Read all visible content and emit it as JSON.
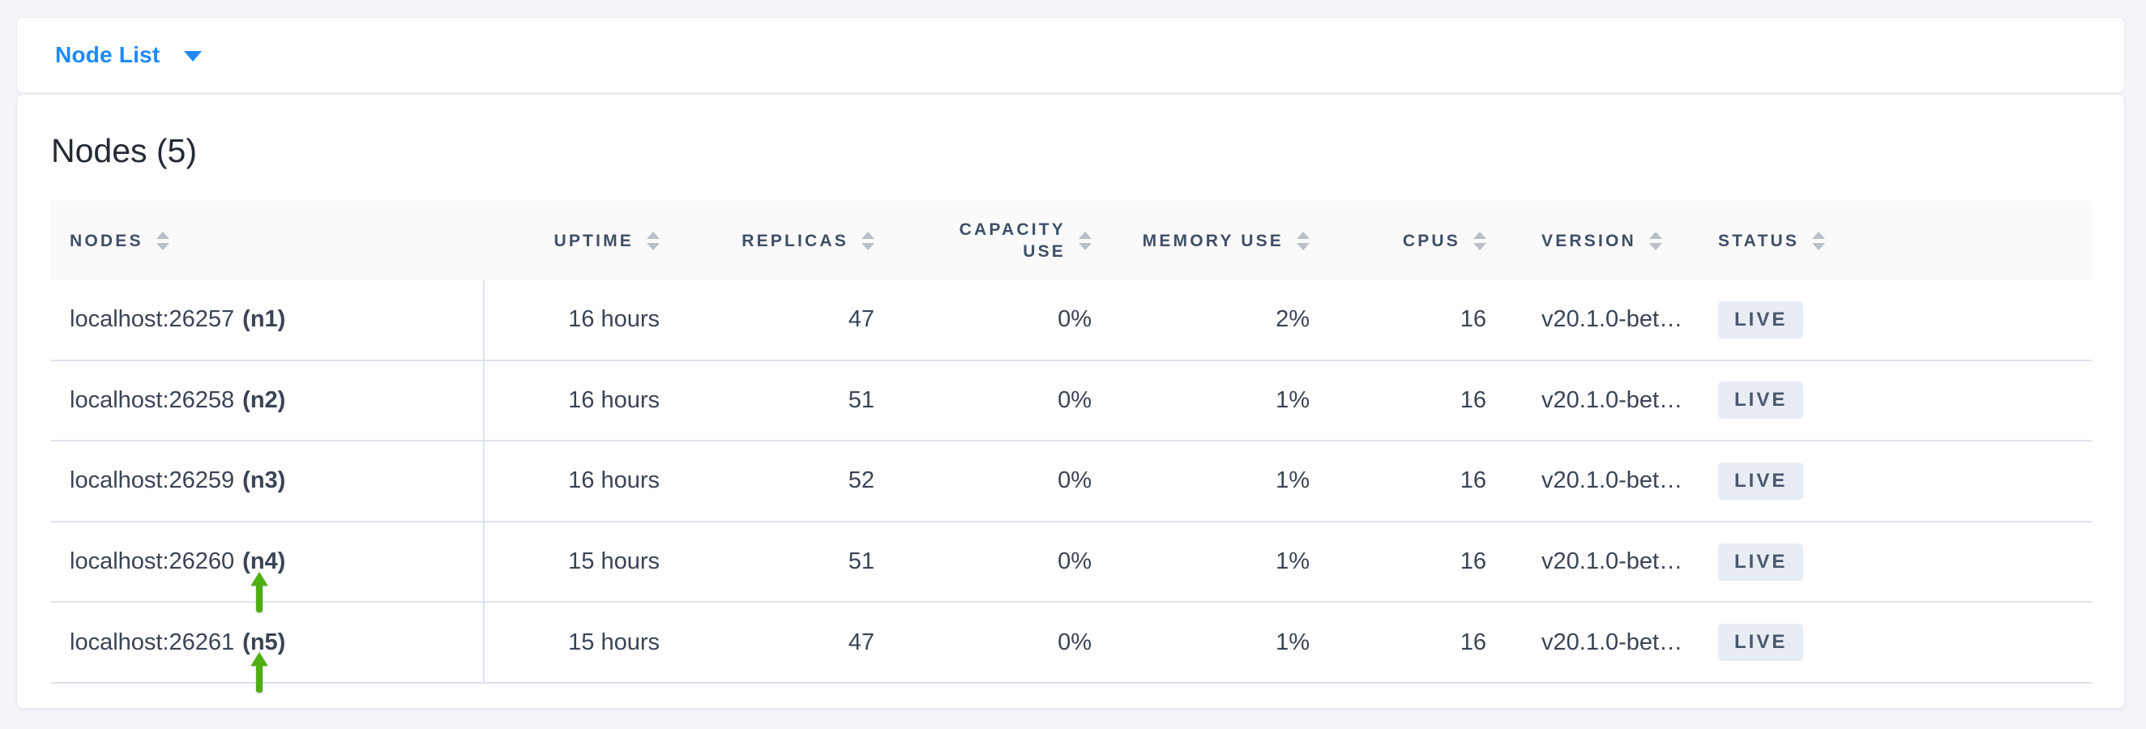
{
  "colors": {
    "accent_blue": "#1d8aff",
    "arrow_green": "#4fae12",
    "header_text": "#3e4f66",
    "body_text": "#394455",
    "badge_bg": "#e8ecf3",
    "page_bg": "#f3f5f9"
  },
  "toolbar": {
    "dropdown_label": "Node List"
  },
  "main": {
    "title": "Nodes (5)",
    "table": {
      "columns": [
        {
          "key": "node",
          "label": "NODES",
          "align": "left"
        },
        {
          "key": "uptime",
          "label": "UPTIME",
          "align": "right"
        },
        {
          "key": "replicas",
          "label": "REPLICAS",
          "align": "right"
        },
        {
          "key": "capacity_use",
          "label": "CAPACITY USE",
          "align": "right"
        },
        {
          "key": "memory_use",
          "label": "MEMORY USE",
          "align": "right"
        },
        {
          "key": "cpus",
          "label": "CPUS",
          "align": "right"
        },
        {
          "key": "version",
          "label": "VERSION",
          "align": "left"
        },
        {
          "key": "status",
          "label": "STATUS",
          "align": "left"
        }
      ],
      "rows": [
        {
          "address": "localhost:26257",
          "id": "(n1)",
          "uptime": "16 hours",
          "replicas": "47",
          "capacity_use": "0%",
          "memory_use": "2%",
          "cpus": "16",
          "version": "v20.1.0-bet…",
          "status": "LIVE",
          "arrow": false
        },
        {
          "address": "localhost:26258",
          "id": "(n2)",
          "uptime": "16 hours",
          "replicas": "51",
          "capacity_use": "0%",
          "memory_use": "1%",
          "cpus": "16",
          "version": "v20.1.0-bet…",
          "status": "LIVE",
          "arrow": false
        },
        {
          "address": "localhost:26259",
          "id": "(n3)",
          "uptime": "16 hours",
          "replicas": "52",
          "capacity_use": "0%",
          "memory_use": "1%",
          "cpus": "16",
          "version": "v20.1.0-bet…",
          "status": "LIVE",
          "arrow": false
        },
        {
          "address": "localhost:26260",
          "id": "(n4)",
          "uptime": "15 hours",
          "replicas": "51",
          "capacity_use": "0%",
          "memory_use": "1%",
          "cpus": "16",
          "version": "v20.1.0-bet…",
          "status": "LIVE",
          "arrow": true
        },
        {
          "address": "localhost:26261",
          "id": "(n5)",
          "uptime": "15 hours",
          "replicas": "47",
          "capacity_use": "0%",
          "memory_use": "1%",
          "cpus": "16",
          "version": "v20.1.0-bet…",
          "status": "LIVE",
          "arrow": true
        }
      ]
    }
  }
}
